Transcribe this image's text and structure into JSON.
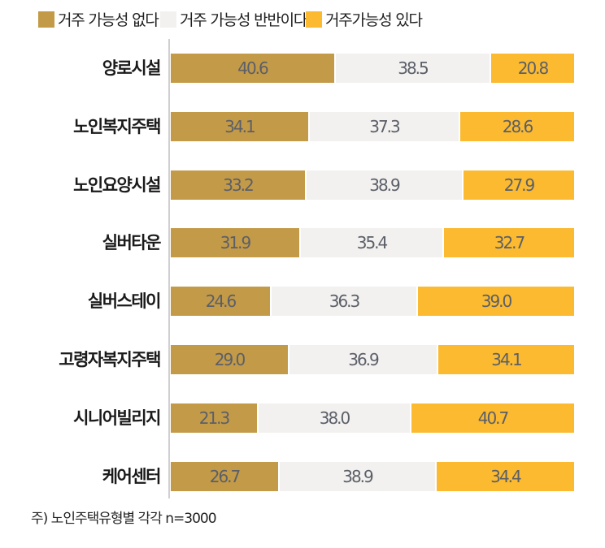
{
  "legend": [
    {
      "label": "거주 가능성 없다",
      "color": "#c39a48"
    },
    {
      "label": "거주 가능성 반반이다",
      "color": "#f2f1ef"
    },
    {
      "label": "거주가능성 있다",
      "color": "#fbba30"
    }
  ],
  "rows": [
    {
      "label": "양로시설",
      "values": [
        "40.6",
        "38.5",
        "20.8"
      ]
    },
    {
      "label": "노인복지주택",
      "values": [
        "34.1",
        "37.3",
        "28.6"
      ]
    },
    {
      "label": "노인요양시설",
      "values": [
        "33.2",
        "38.9",
        "27.9"
      ]
    },
    {
      "label": "실버타운",
      "values": [
        "31.9",
        "35.4",
        "32.7"
      ]
    },
    {
      "label": "실버스테이",
      "values": [
        "24.6",
        "36.3",
        "39.0"
      ]
    },
    {
      "label": "고령자복지주택",
      "values": [
        "29.0",
        "36.9",
        "34.1"
      ]
    },
    {
      "label": "시니어빌리지",
      "values": [
        "21.3",
        "38.0",
        "40.7"
      ]
    },
    {
      "label": "케어센터",
      "values": [
        "26.7",
        "38.9",
        "34.4"
      ]
    }
  ],
  "footnote": "주) 노인주택유형별 각각 n=3000",
  "chart_data": {
    "type": "bar",
    "orientation": "horizontal",
    "stacked": true,
    "percent_stacked": true,
    "categories": [
      "양로시설",
      "노인복지주택",
      "노인요양시설",
      "실버타운",
      "실버스테이",
      "고령자복지주택",
      "시니어빌리지",
      "케어센터"
    ],
    "series": [
      {
        "name": "거주 가능성 없다",
        "color": "#c39a48",
        "values": [
          40.6,
          34.1,
          33.2,
          31.9,
          24.6,
          29.0,
          21.3,
          26.7
        ]
      },
      {
        "name": "거주 가능성 반반이다",
        "color": "#f2f1ef",
        "values": [
          38.5,
          37.3,
          38.9,
          35.4,
          36.3,
          36.9,
          38.0,
          38.9
        ]
      },
      {
        "name": "거주가능성 있다",
        "color": "#fbba30",
        "values": [
          20.8,
          28.6,
          27.9,
          32.7,
          39.0,
          34.1,
          40.7,
          34.4
        ]
      }
    ],
    "title": "",
    "xlabel": "",
    "ylabel": "",
    "xlim": [
      0,
      100
    ],
    "grid": false,
    "data_labels": true,
    "legend_position": "top",
    "annotation": "주) 노인주택유형별 각각 n=3000"
  }
}
